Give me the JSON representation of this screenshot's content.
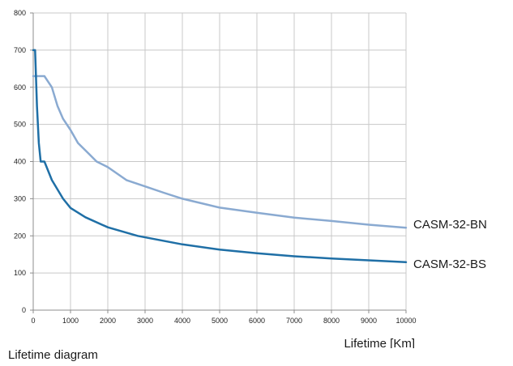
{
  "chart_data": {
    "type": "line",
    "xlabel": "Lifetime [Km]",
    "ylabel": "",
    "xlim": [
      0,
      10000
    ],
    "ylim": [
      0,
      800
    ],
    "xticks": [
      0,
      1000,
      2000,
      3000,
      4000,
      5000,
      6000,
      7000,
      8000,
      9000,
      10000
    ],
    "yticks": [
      0,
      100,
      200,
      300,
      400,
      500,
      600,
      700,
      800
    ],
    "grid": true,
    "series": [
      {
        "name": "CASM-32-BN",
        "color": "#8aaad1",
        "x": [
          0,
          300,
          500,
          650,
          800,
          1000,
          1200,
          1500,
          1700,
          2000,
          2500,
          3000,
          3500,
          4000,
          5000,
          6000,
          7000,
          8000,
          9000,
          10000
        ],
        "y": [
          630,
          630,
          600,
          550,
          515,
          485,
          450,
          420,
          400,
          385,
          350,
          333,
          316,
          300,
          276,
          262,
          249,
          240,
          230,
          222
        ]
      },
      {
        "name": "CASM-32-BS",
        "color": "#1f6fa6",
        "x": [
          0,
          50,
          100,
          150,
          200,
          300,
          500,
          800,
          1000,
          1400,
          2000,
          2800,
          4000,
          5000,
          6000,
          7000,
          8000,
          9000,
          10000
        ],
        "y": [
          700,
          700,
          550,
          450,
          400,
          400,
          350,
          300,
          275,
          250,
          223,
          200,
          177,
          163,
          153,
          145,
          139,
          134,
          129
        ]
      }
    ]
  },
  "caption": "Lifetime diagram"
}
